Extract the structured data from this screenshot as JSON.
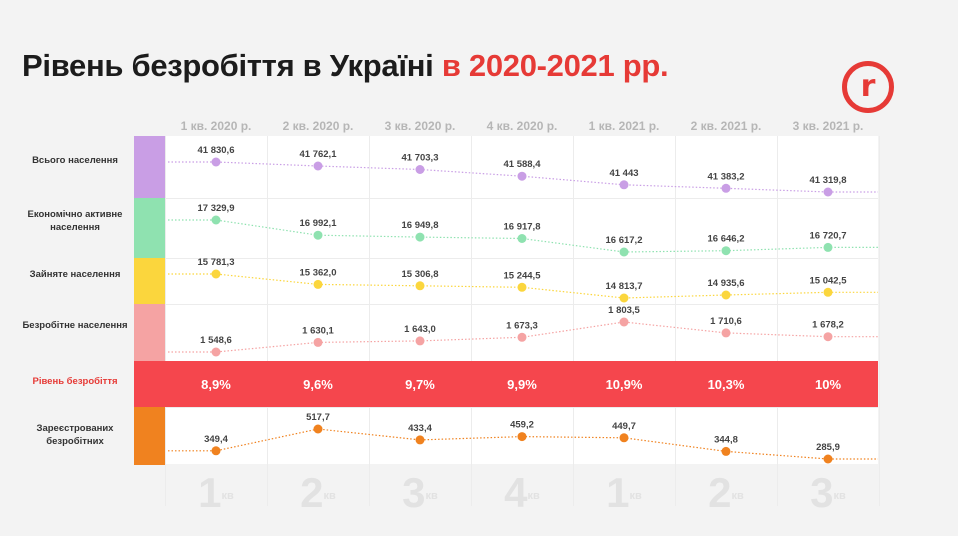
{
  "title": {
    "main": "Рівень безробіття в Україні ",
    "highlight": "в 2020-2021 рр."
  },
  "logo": {
    "letter": "r"
  },
  "columns": [
    "1 кв. 2020 р.",
    "2 кв. 2020 р.",
    "3 кв. 2020 р.",
    "4 кв. 2020 р.",
    "1 кв. 2021 р.",
    "2 кв. 2021 р.",
    "3 кв. 2021 р."
  ],
  "rows": {
    "total": {
      "label": "Всього населення",
      "color": "#c99ee5"
    },
    "active": {
      "label": "Економічно активне населення",
      "color": "#8fe2b0"
    },
    "employed": {
      "label": "Зайняте населення",
      "color": "#fbd63d"
    },
    "unemployed": {
      "label": "Безробітне населення",
      "color": "#f5a3a3"
    },
    "rate": {
      "label": "Рівень безробіття",
      "color": "#f5464d"
    },
    "registered": {
      "label": "Зареєстрованих безробітних",
      "color": "#f0821f"
    }
  },
  "quarters": [
    {
      "n": "1",
      "s": "кв"
    },
    {
      "n": "2",
      "s": "кв"
    },
    {
      "n": "3",
      "s": "кв"
    },
    {
      "n": "4",
      "s": "кв"
    },
    {
      "n": "1",
      "s": "кв"
    },
    {
      "n": "2",
      "s": "кв"
    },
    {
      "n": "3",
      "s": "кв"
    }
  ],
  "chart_data": {
    "type": "line",
    "title": "Рівень безробіття в Україні в 2020-2021 рр.",
    "categories": [
      "1 кв. 2020 р.",
      "2 кв. 2020 р.",
      "3 кв. 2020 р.",
      "4 кв. 2020 р.",
      "1 кв. 2021 р.",
      "2 кв. 2021 р.",
      "3 кв. 2021 р."
    ],
    "series": [
      {
        "key": "total",
        "name": "Всього населення",
        "color": "#c99ee5",
        "values": [
          41830.6,
          41762.1,
          41703.3,
          41588.4,
          41443,
          41383.2,
          41319.8
        ],
        "labels": [
          "41 830,6",
          "41 762,1",
          "41 703,3",
          "41 588,4",
          "41 443",
          "41 383,2",
          "41 319,8"
        ]
      },
      {
        "key": "active",
        "name": "Економічно активне населення",
        "color": "#8fe2b0",
        "values": [
          17329.9,
          16992.1,
          16949.8,
          16917.8,
          16617.2,
          16646.2,
          16720.7
        ],
        "labels": [
          "17 329,9",
          "16 992,1",
          "16 949,8",
          "16 917,8",
          "16 617,2",
          "16 646,2",
          "16 720,7"
        ]
      },
      {
        "key": "employed",
        "name": "Зайняте населення",
        "color": "#fbd63d",
        "values": [
          15781.3,
          15362.0,
          15306.8,
          15244.5,
          14813.7,
          14935.6,
          15042.5
        ],
        "labels": [
          "15 781,3",
          "15 362,0",
          "15 306,8",
          "15 244,5",
          "14 813,7",
          "14 935,6",
          "15 042,5"
        ]
      },
      {
        "key": "unemployed",
        "name": "Безробітне населення",
        "color": "#f5a3a3",
        "values": [
          1548.6,
          1630.1,
          1643.0,
          1673.3,
          1803.5,
          1710.6,
          1678.2
        ],
        "labels": [
          "1 548,6",
          "1 630,1",
          "1 643,0",
          "1 673,3",
          "1 803,5",
          "1 710,6",
          "1 678,2"
        ]
      },
      {
        "key": "rate",
        "name": "Рівень безробіття",
        "color": "#f5464d",
        "values": [
          8.9,
          9.6,
          9.7,
          9.9,
          10.9,
          10.3,
          10
        ],
        "labels": [
          "8,9%",
          "9,6%",
          "9,7%",
          "9,9%",
          "10,9%",
          "10,3%",
          "10%"
        ]
      },
      {
        "key": "registered",
        "name": "Зареєстрованих безробітних",
        "color": "#f0821f",
        "values": [
          349.4,
          517.7,
          433.4,
          459.2,
          449.7,
          344.8,
          285.9
        ],
        "labels": [
          "349,4",
          "517,7",
          "433,4",
          "459,2",
          "449,7",
          "344,8",
          "285,9"
        ]
      }
    ]
  }
}
